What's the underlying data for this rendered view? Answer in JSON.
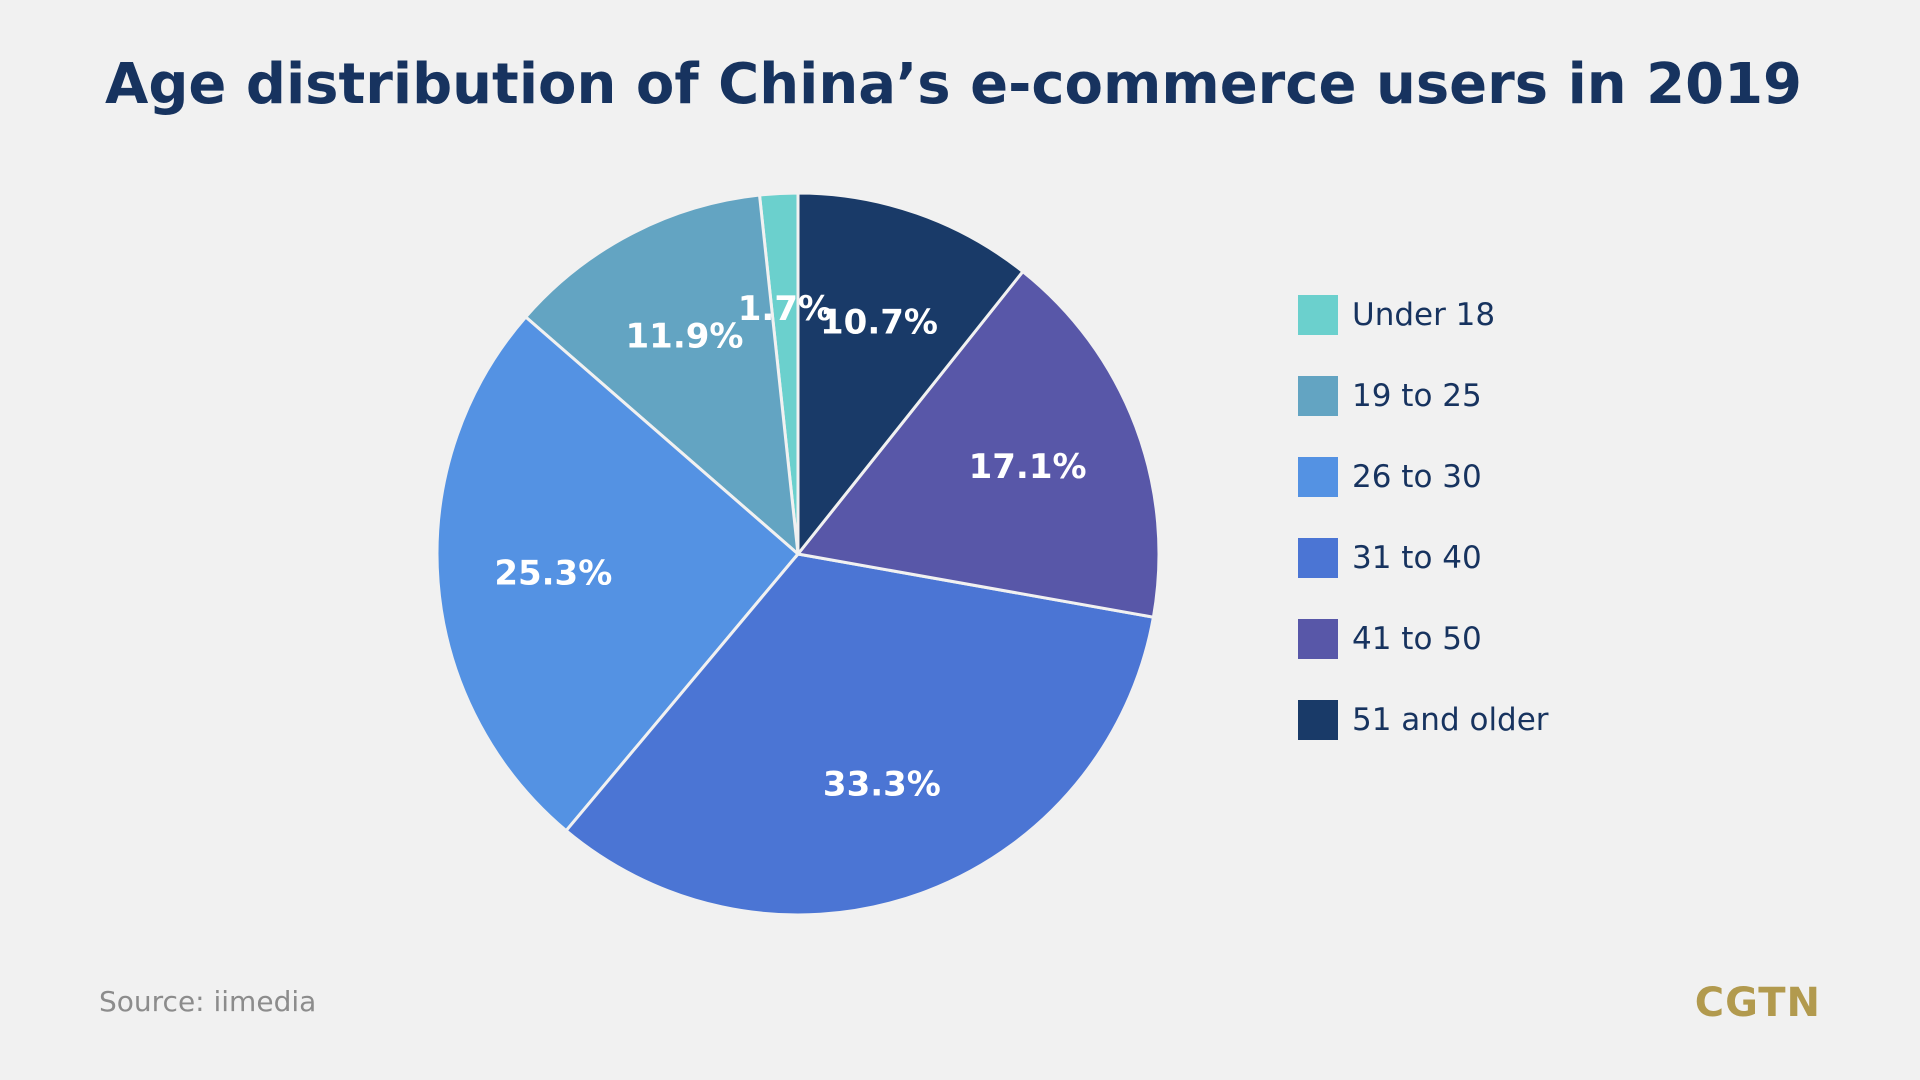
{
  "chart_data": {
    "type": "pie",
    "title": "Age distribution of China’s e-commerce users in 2019",
    "categories": [
      "Under 18",
      "19 to 25",
      "26 to 30",
      "31 to 40",
      "41 to 50",
      "51 and older"
    ],
    "values": [
      1.7,
      11.9,
      25.3,
      33.3,
      17.1,
      10.7
    ],
    "labels": [
      "1.7%",
      "11.9%",
      "25.3%",
      "33.3%",
      "17.1%",
      "10.7%"
    ],
    "colors": [
      "#6bd0cd",
      "#63a4c2",
      "#5492e3",
      "#4b75d4",
      "#5857a8",
      "#193a68"
    ],
    "order": "counterclockwise from 12 o'clock",
    "legend_position": "right"
  },
  "footer": {
    "source": "Source: iimedia",
    "logo": "CGTN"
  }
}
